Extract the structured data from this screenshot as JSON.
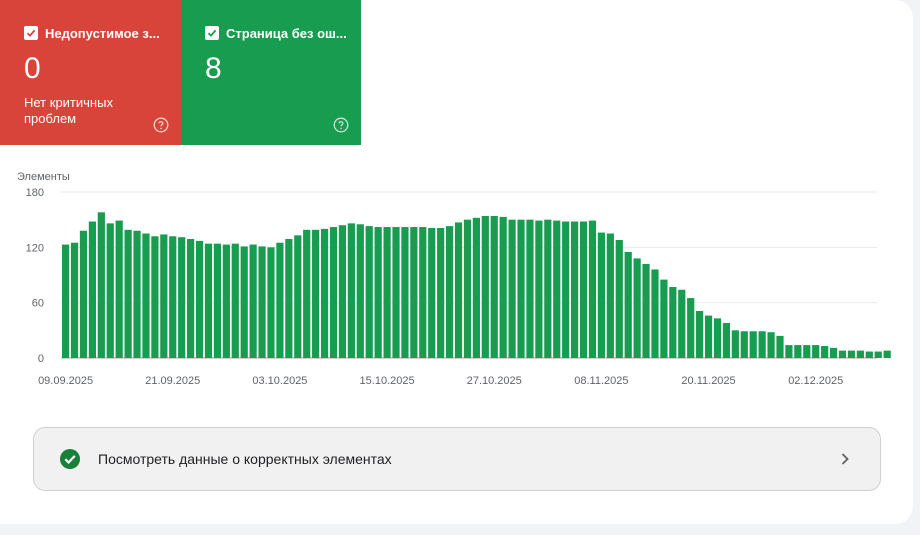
{
  "tiles": [
    {
      "title": "Недопустимое з...",
      "value": "0",
      "subtitle": "Нет критичных проблем",
      "color": "#d9443a",
      "checkbox_icon": "checkbox-checked-icon",
      "help_icon": "help-circle-icon"
    },
    {
      "title": "Страница без ош...",
      "value": "8",
      "subtitle": "",
      "color": "#179c50",
      "checkbox_icon": "checkbox-checked-icon",
      "help_icon": "help-circle-icon"
    }
  ],
  "chart_data": {
    "type": "bar",
    "title": "",
    "ylabel": "Элементы",
    "xlabel": "",
    "ylim": [
      0,
      180
    ],
    "yticks": [
      0,
      60,
      120,
      180
    ],
    "x_tick_labels": [
      "09.09.2025",
      "21.09.2025",
      "03.10.2025",
      "15.10.2025",
      "27.10.2025",
      "08.11.2025",
      "20.11.2025",
      "02.12.2025"
    ],
    "x_tick_indices": [
      0,
      12,
      24,
      36,
      48,
      60,
      72,
      84
    ],
    "grid": true,
    "color": "#179c50",
    "values": [
      123,
      125,
      138,
      148,
      158,
      146,
      149,
      139,
      138,
      135,
      132,
      134,
      132,
      131,
      129,
      127,
      124,
      124,
      123,
      124,
      121,
      123,
      121,
      120,
      125,
      129,
      133,
      139,
      139,
      140,
      142,
      144,
      146,
      145,
      143,
      142,
      142,
      142,
      142,
      142,
      142,
      141,
      141,
      143,
      147,
      150,
      152,
      154,
      154,
      153,
      150,
      150,
      150,
      149,
      150,
      149,
      148,
      148,
      148,
      149,
      136,
      135,
      128,
      115,
      108,
      102,
      96,
      85,
      77,
      74,
      65,
      51,
      46,
      43,
      38,
      30,
      29,
      29,
      29,
      28,
      24,
      14,
      14,
      14,
      14,
      13,
      11,
      8,
      8,
      8,
      7,
      7,
      8
    ]
  },
  "footer_link": {
    "label": "Посмотреть данные о корректных элементах",
    "check_icon": "check-circle-icon",
    "chevron_icon": "chevron-right-icon"
  }
}
